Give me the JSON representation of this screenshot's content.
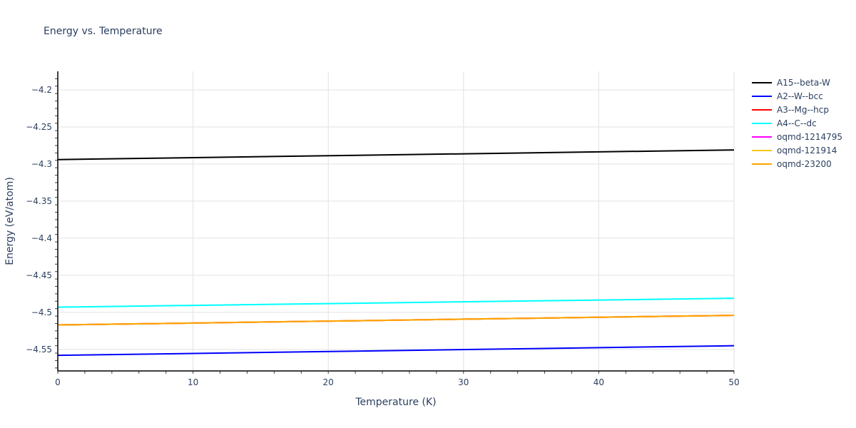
{
  "chart_data": {
    "type": "line",
    "title": "Energy vs. Temperature",
    "xlabel": "Temperature (K)",
    "ylabel": "Energy (eV/atom)",
    "xlim": [
      0,
      50
    ],
    "ylim": [
      -4.579,
      -4.175
    ],
    "x_ticks": [
      0,
      10,
      20,
      30,
      40,
      50
    ],
    "y_ticks": [
      -4.2,
      -4.25,
      -4.3,
      -4.35,
      -4.4,
      -4.45,
      -4.5,
      -4.55
    ],
    "y_tick_labels": [
      "−4.2",
      "−4.25",
      "−4.3",
      "−4.35",
      "−4.4",
      "−4.45",
      "−4.5",
      "−4.55"
    ],
    "grid": true,
    "legend_position": "right",
    "x": [
      0,
      50
    ],
    "series": [
      {
        "name": "A15--beta-W",
        "color": "#000000",
        "values": [
          -4.294,
          -4.281
        ]
      },
      {
        "name": "A2--W--bcc",
        "color": "#0000ff",
        "values": [
          -4.558,
          -4.545
        ]
      },
      {
        "name": "A3--Mg--hcp",
        "color": "#ff0000",
        "values": [
          -4.517,
          -4.504
        ]
      },
      {
        "name": "A4--C--dc",
        "color": "#00ffff",
        "values": [
          -4.493,
          -4.481
        ]
      },
      {
        "name": "oqmd-1214795",
        "color": "#ff00ff",
        "values": [
          -4.517,
          -4.504
        ]
      },
      {
        "name": "oqmd-121914",
        "color": "#f5c518",
        "values": [
          -4.517,
          -4.504
        ]
      },
      {
        "name": "oqmd-23200",
        "color": "#ffa500",
        "values": [
          -4.517,
          -4.504
        ]
      }
    ]
  },
  "legend": {
    "items": [
      {
        "label": "A15--beta-W",
        "color": "#000000"
      },
      {
        "label": "A2--W--bcc",
        "color": "#0000ff"
      },
      {
        "label": "A3--Mg--hcp",
        "color": "#ff0000"
      },
      {
        "label": "A4--C--dc",
        "color": "#00ffff"
      },
      {
        "label": "oqmd-1214795",
        "color": "#ff00ff"
      },
      {
        "label": "oqmd-121914",
        "color": "#f5c518"
      },
      {
        "label": "oqmd-23200",
        "color": "#ffa500"
      }
    ]
  }
}
